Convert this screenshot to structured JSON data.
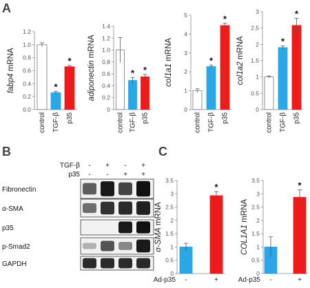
{
  "panel_letters": {
    "a": "A",
    "b": "B",
    "c": "C"
  },
  "colors": {
    "control": "#ffffff",
    "tgf": "#29a7e8",
    "p35": "#ef1a1a",
    "ad_control": "#29a7e8",
    "ad_p35": "#ef1a1a"
  },
  "chart_data": [
    {
      "type": "bar",
      "panel": "A",
      "gene": "fabp4",
      "ylabel_gene": "fabp4",
      "ylabel_suffix": " mRNA",
      "categories": [
        "control",
        "TGF-β",
        "p35"
      ],
      "values": [
        1.0,
        0.26,
        0.66
      ],
      "errors": [
        0.03,
        0.02,
        0.02
      ],
      "significance": [
        "",
        "*",
        "*"
      ],
      "ylim": [
        0,
        1.2
      ],
      "yticks": [
        "0.0",
        "0.2",
        "0.4",
        "0.6",
        "0.8",
        "1.0",
        "1.2"
      ]
    },
    {
      "type": "bar",
      "panel": "A",
      "gene": "adiponectin",
      "ylabel_gene": "adiponectin",
      "ylabel_suffix": " mRNA",
      "categories": [
        "control",
        "TGF-β",
        "p35"
      ],
      "values": [
        1.0,
        0.49,
        0.55
      ],
      "errors": [
        0.21,
        0.05,
        0.04
      ],
      "significance": [
        "",
        "*",
        "*"
      ],
      "ylim": [
        0,
        1.4
      ],
      "yticks": [
        "0",
        "0.2",
        "0.4",
        "0.6",
        "0.8",
        "1.0",
        "1.2",
        "1.4"
      ]
    },
    {
      "type": "bar",
      "panel": "A",
      "gene": "col1a1",
      "ylabel_gene": "col1a1",
      "ylabel_suffix": " mRNA",
      "categories": [
        "control",
        "TGF-β",
        "p35"
      ],
      "values": [
        1.0,
        2.28,
        4.45
      ],
      "errors": [
        0.1,
        0.08,
        0.12
      ],
      "significance": [
        "",
        "*",
        "*"
      ],
      "ylim": [
        0,
        5
      ],
      "yticks": [
        "0",
        "1",
        "2",
        "3",
        "4",
        "5"
      ]
    },
    {
      "type": "bar",
      "panel": "A",
      "gene": "col1a2",
      "ylabel_gene": "col1a2",
      "ylabel_suffix": " mRNA",
      "categories": [
        "control",
        "TGF-β",
        "p35"
      ],
      "values": [
        1.0,
        1.9,
        2.58
      ],
      "errors": [
        0.03,
        0.05,
        0.22
      ],
      "significance": [
        "",
        "*",
        "*"
      ],
      "ylim": [
        0,
        3
      ],
      "yticks": [
        "0",
        "0.5",
        "1",
        "1.5",
        "2",
        "2.5",
        "3"
      ]
    },
    {
      "type": "bar",
      "panel": "C",
      "gene": "α-SMA",
      "ylabel_gene": "α-SMA",
      "ylabel_suffix": " mRNA",
      "categories": [
        "-",
        "+"
      ],
      "xlabel": "Ad-p35",
      "values": [
        1.0,
        2.93
      ],
      "errors": [
        0.14,
        0.15
      ],
      "significance": [
        "",
        "*"
      ],
      "ylim": [
        0,
        3.5
      ],
      "yticks": [
        "0",
        "0.5",
        "1",
        "1.5",
        "2",
        "2.5",
        "3",
        "3.5"
      ]
    },
    {
      "type": "bar",
      "panel": "C",
      "gene": "COL1A1",
      "ylabel_gene": "COL1A1",
      "ylabel_suffix": " mRNA",
      "categories": [
        "-",
        "+"
      ],
      "xlabel": "Ad-p35",
      "values": [
        1.0,
        2.87
      ],
      "errors": [
        0.38,
        0.28
      ],
      "significance": [
        "",
        "*"
      ],
      "ylim": [
        0,
        3.5
      ],
      "yticks": [
        "0",
        "0.5",
        "1",
        "1.5",
        "2",
        "2.5",
        "3",
        "3.5"
      ]
    }
  ],
  "western_blot": {
    "conditions": [
      {
        "label": "TGF-β",
        "signs": [
          "-",
          "+",
          "-",
          "+"
        ]
      },
      {
        "label": "p35",
        "signs": [
          "-",
          "-",
          "+",
          "+"
        ]
      }
    ],
    "rows": [
      {
        "label": "Fibronectin",
        "intensity": [
          0.55,
          0.95,
          0.7,
          1.0
        ]
      },
      {
        "label": "α-SMA",
        "intensity": [
          0.45,
          0.8,
          0.85,
          0.9
        ]
      },
      {
        "label": "p35",
        "intensity": [
          0.0,
          0.0,
          0.95,
          1.0
        ]
      },
      {
        "label": "p-Smad2",
        "intensity": [
          0.05,
          0.6,
          0.3,
          0.95
        ]
      },
      {
        "label": "GAPDH",
        "intensity": [
          0.85,
          0.85,
          0.85,
          0.85
        ]
      }
    ]
  }
}
